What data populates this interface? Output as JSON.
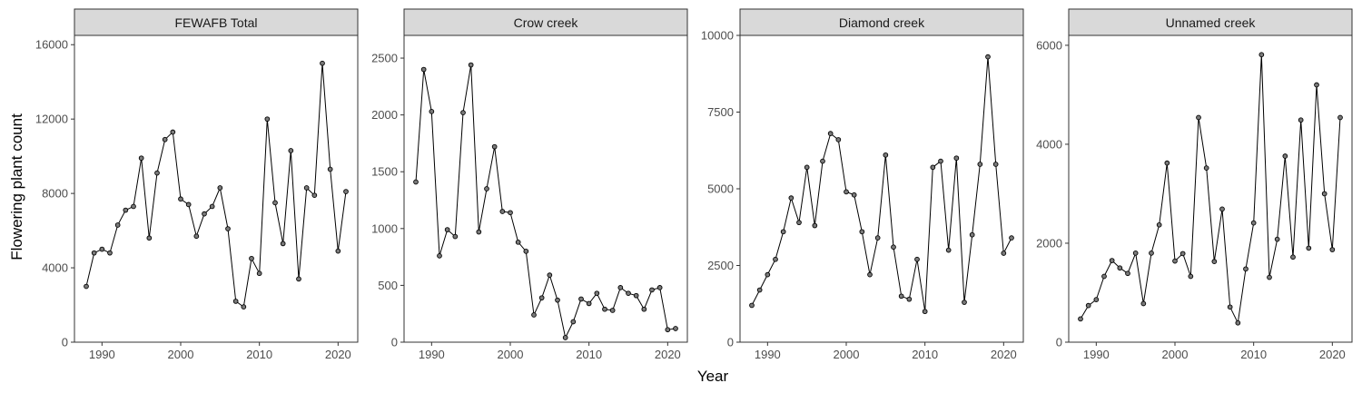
{
  "chart_data": {
    "type": "line",
    "xlabel": "Year",
    "ylabel": "Flowering plant count",
    "grid": false,
    "facets": [
      {
        "title": "FEWAFB Total",
        "xlim": [
          1986.5,
          2022.5
        ],
        "xticks": [
          1990,
          2000,
          2010,
          2020
        ],
        "ylim": [
          0,
          16500
        ],
        "yticks": [
          0,
          4000,
          8000,
          12000,
          16000
        ],
        "points": [
          [
            1988,
            3000
          ],
          [
            1989,
            4800
          ],
          [
            1990,
            5000
          ],
          [
            1991,
            4800
          ],
          [
            1992,
            6300
          ],
          [
            1993,
            7100
          ],
          [
            1994,
            7300
          ],
          [
            1995,
            9900
          ],
          [
            1996,
            5600
          ],
          [
            1997,
            9100
          ],
          [
            1998,
            10900
          ],
          [
            1999,
            11300
          ],
          [
            2000,
            7700
          ],
          [
            2001,
            7400
          ],
          [
            2002,
            5700
          ],
          [
            2003,
            6900
          ],
          [
            2004,
            7300
          ],
          [
            2005,
            8300
          ],
          [
            2006,
            6100
          ],
          [
            2007,
            2200
          ],
          [
            2008,
            1900
          ],
          [
            2009,
            4500
          ],
          [
            2010,
            3700
          ],
          [
            2011,
            12000
          ],
          [
            2012,
            7500
          ],
          [
            2013,
            5300
          ],
          [
            2014,
            10300
          ],
          [
            2015,
            3400
          ],
          [
            2016,
            8300
          ],
          [
            2017,
            7900
          ],
          [
            2018,
            15000
          ],
          [
            2019,
            9300
          ],
          [
            2020,
            4900
          ],
          [
            2021,
            8100
          ]
        ]
      },
      {
        "title": "Crow creek",
        "xlim": [
          1986.5,
          2022.5
        ],
        "xticks": [
          1990,
          2000,
          2010,
          2020
        ],
        "ylim": [
          0,
          2700
        ],
        "yticks": [
          0,
          500,
          1000,
          1500,
          2000,
          2500
        ],
        "points": [
          [
            1988,
            1410
          ],
          [
            1989,
            2400
          ],
          [
            1990,
            2030
          ],
          [
            1991,
            760
          ],
          [
            1992,
            990
          ],
          [
            1993,
            930
          ],
          [
            1994,
            2020
          ],
          [
            1995,
            2440
          ],
          [
            1996,
            970
          ],
          [
            1997,
            1350
          ],
          [
            1998,
            1720
          ],
          [
            1999,
            1150
          ],
          [
            2000,
            1140
          ],
          [
            2001,
            880
          ],
          [
            2002,
            800
          ],
          [
            2003,
            240
          ],
          [
            2004,
            390
          ],
          [
            2005,
            590
          ],
          [
            2006,
            370
          ],
          [
            2007,
            40
          ],
          [
            2008,
            180
          ],
          [
            2009,
            380
          ],
          [
            2010,
            340
          ],
          [
            2011,
            430
          ],
          [
            2012,
            290
          ],
          [
            2013,
            280
          ],
          [
            2014,
            480
          ],
          [
            2015,
            430
          ],
          [
            2016,
            410
          ],
          [
            2017,
            290
          ],
          [
            2018,
            460
          ],
          [
            2019,
            480
          ],
          [
            2020,
            110
          ],
          [
            2021,
            120
          ]
        ]
      },
      {
        "title": "Diamond creek",
        "xlim": [
          1986.5,
          2022.5
        ],
        "xticks": [
          1990,
          2000,
          2010,
          2020
        ],
        "ylim": [
          0,
          10000
        ],
        "yticks": [
          0,
          2500,
          5000,
          7500,
          10000
        ],
        "points": [
          [
            1988,
            1200
          ],
          [
            1989,
            1700
          ],
          [
            1990,
            2200
          ],
          [
            1991,
            2700
          ],
          [
            1992,
            3600
          ],
          [
            1993,
            4700
          ],
          [
            1994,
            3900
          ],
          [
            1995,
            5700
          ],
          [
            1996,
            3800
          ],
          [
            1997,
            5900
          ],
          [
            1998,
            6800
          ],
          [
            1999,
            6600
          ],
          [
            2000,
            4900
          ],
          [
            2001,
            4800
          ],
          [
            2002,
            3600
          ],
          [
            2003,
            2200
          ],
          [
            2004,
            3400
          ],
          [
            2005,
            6100
          ],
          [
            2006,
            3100
          ],
          [
            2007,
            1500
          ],
          [
            2008,
            1400
          ],
          [
            2009,
            2700
          ],
          [
            2010,
            1000
          ],
          [
            2011,
            5700
          ],
          [
            2012,
            5900
          ],
          [
            2013,
            3000
          ],
          [
            2014,
            6000
          ],
          [
            2015,
            1300
          ],
          [
            2016,
            3500
          ],
          [
            2017,
            5800
          ],
          [
            2018,
            9300
          ],
          [
            2019,
            5800
          ],
          [
            2020,
            2900
          ],
          [
            2021,
            3400
          ]
        ]
      },
      {
        "title": "Unnamed creek",
        "xlim": [
          1986.5,
          2022.5
        ],
        "xticks": [
          1990,
          2000,
          2010,
          2020
        ],
        "ylim": [
          0,
          6200
        ],
        "yticks": [
          0,
          2000,
          4000,
          6000
        ],
        "points": [
          [
            1988,
            470
          ],
          [
            1989,
            740
          ],
          [
            1990,
            860
          ],
          [
            1991,
            1330
          ],
          [
            1992,
            1650
          ],
          [
            1993,
            1500
          ],
          [
            1994,
            1390
          ],
          [
            1995,
            1800
          ],
          [
            1996,
            780
          ],
          [
            1997,
            1800
          ],
          [
            1998,
            2370
          ],
          [
            1999,
            3620
          ],
          [
            2000,
            1640
          ],
          [
            2001,
            1790
          ],
          [
            2002,
            1330
          ],
          [
            2003,
            4540
          ],
          [
            2004,
            3520
          ],
          [
            2005,
            1630
          ],
          [
            2006,
            2690
          ],
          [
            2007,
            710
          ],
          [
            2008,
            390
          ],
          [
            2009,
            1480
          ],
          [
            2010,
            2410
          ],
          [
            2011,
            5810
          ],
          [
            2012,
            1310
          ],
          [
            2013,
            2080
          ],
          [
            2014,
            3760
          ],
          [
            2015,
            1720
          ],
          [
            2016,
            4490
          ],
          [
            2017,
            1900
          ],
          [
            2018,
            5200
          ],
          [
            2019,
            3000
          ],
          [
            2020,
            1870
          ],
          [
            2021,
            4540
          ]
        ]
      }
    ]
  }
}
